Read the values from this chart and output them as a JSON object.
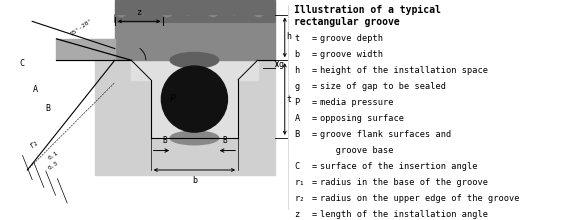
{
  "title_line1": "Illustration of a typical",
  "title_line2": "rectangular groove",
  "legend_items": [
    {
      "symbol": "t",
      "desc": "groove depth"
    },
    {
      "symbol": "b",
      "desc": "groove width"
    },
    {
      "symbol": "h",
      "desc": "height of the installation space"
    },
    {
      "symbol": "g",
      "desc": "size of gap to be sealed"
    },
    {
      "symbol": "P",
      "desc": "media pressure"
    },
    {
      "symbol": "A",
      "desc": "opposing surface"
    },
    {
      "symbol": "B",
      "desc": "groove flank surfaces and"
    },
    {
      "symbol": "",
      "desc": "   groove base"
    },
    {
      "symbol": "C",
      "desc": "surface of the insertion angle"
    },
    {
      "symbol": "r₁",
      "desc": "radius in the base of the groove"
    },
    {
      "symbol": "r₂",
      "desc": "radius on the upper edge of the groove"
    },
    {
      "symbol": "z",
      "desc": "length of the installation angle"
    }
  ],
  "bg_color": "#ffffff",
  "black": "#000000",
  "col_dark": "#888888",
  "col_mid": "#aaaaaa",
  "col_light": "#d0d0d0",
  "col_groove": "#c8c8c8",
  "col_oring": "#111111",
  "col_top_dark": "#7a7a7a",
  "col_squeeze": "#606060"
}
